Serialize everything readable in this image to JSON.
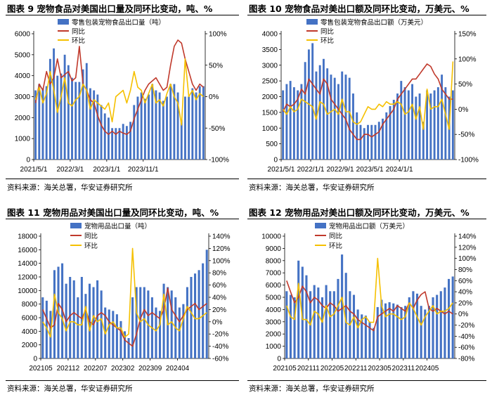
{
  "source_label": "资料来源：海关总署，华安证券研究所",
  "colors": {
    "bar": "#4472C4",
    "yoy": "#C0392B",
    "mom": "#F5C000"
  },
  "chart_data": [
    {
      "type": "bar",
      "title": "图表 9 宠物食品对美国出口量及同环比变动，吨、%",
      "series": [
        {
          "name": "零售包装宠物食品出口量（吨）",
          "kind": "bar",
          "axis": "left",
          "values": [
            3300,
            3600,
            3400,
            3500,
            4800,
            5300,
            4000,
            4100,
            5000,
            4500,
            3900,
            3700,
            3700,
            4300,
            4600,
            3400,
            3300,
            3100,
            2600,
            2200,
            2000,
            1500,
            1500,
            1500,
            1700,
            1600,
            1800,
            2600,
            3000,
            3200,
            2900,
            3100,
            3600,
            3300,
            3200,
            2800,
            3000,
            3600,
            3600,
            3200,
            1900,
            3000,
            3000,
            3400,
            3200,
            3500,
            3500
          ]
        },
        {
          "name": "同比",
          "kind": "line",
          "axis": "right",
          "values": [
            -10,
            20,
            10,
            40,
            20,
            30,
            60,
            30,
            35,
            40,
            25,
            30,
            80,
            20,
            10,
            -5,
            -10,
            -30,
            -45,
            -55,
            -60,
            -55,
            -60,
            -55,
            -58,
            -60,
            -55,
            -35,
            -20,
            -5,
            10,
            20,
            25,
            30,
            20,
            10,
            15,
            50,
            80,
            90,
            85,
            60,
            40,
            20,
            10,
            20,
            15
          ]
        },
        {
          "name": "环比",
          "kind": "line",
          "axis": "right",
          "values": [
            -5,
            15,
            -10,
            5,
            40,
            10,
            -25,
            0,
            30,
            -10,
            -15,
            -5,
            0,
            20,
            10,
            -20,
            -5,
            -10,
            -15,
            -20,
            -10,
            -40,
            0,
            5,
            10,
            -10,
            10,
            40,
            15,
            10,
            -10,
            5,
            20,
            -10,
            -5,
            -15,
            5,
            20,
            0,
            -10,
            -45,
            60,
            0,
            10,
            -5,
            5,
            0
          ]
        }
      ],
      "x_tick_labels": [
        "2021/5/1",
        "2022/3/1",
        "2023/1/1",
        "2023/11/1"
      ],
      "x_tick_index": [
        0,
        10,
        20,
        30
      ],
      "ylim_left": [
        0,
        6000
      ],
      "yticks_left": [
        0,
        1000,
        2000,
        3000,
        4000,
        5000,
        6000
      ],
      "ylim_right": [
        -100,
        100
      ],
      "yticks_right": [
        -100,
        -50,
        0,
        50,
        100
      ],
      "right_suffix": "%",
      "legend": [
        "零售包装宠物食品出口量（吨）",
        "同比",
        "环比"
      ]
    },
    {
      "type": "bar",
      "title": "图表 10 宠物食品对美出口额及同环比变动，万美元、%",
      "series": [
        {
          "name": "零售包装宠物食品出口额（万美元）",
          "kind": "bar",
          "axis": "left",
          "values": [
            2200,
            2400,
            2500,
            2300,
            2200,
            2400,
            3100,
            3500,
            3700,
            2800,
            3000,
            3200,
            2900,
            2700,
            2600,
            2400,
            2800,
            2700,
            2600,
            2100,
            1500,
            1100,
            1000,
            1100,
            1100,
            1100,
            1200,
            1300,
            1500,
            1700,
            1900,
            2100,
            2500,
            2300,
            2200,
            2400,
            2000,
            2100,
            1200,
            2200,
            2100,
            2200,
            2300,
            2700,
            2300,
            2000,
            2200
          ]
        },
        {
          "name": "同比",
          "kind": "line",
          "axis": "right",
          "values": [
            -5,
            10,
            5,
            10,
            20,
            40,
            30,
            60,
            50,
            40,
            30,
            60,
            50,
            20,
            10,
            0,
            -10,
            -20,
            -40,
            -50,
            -60,
            -60,
            -50,
            -50,
            -55,
            -50,
            -45,
            -30,
            -20,
            -10,
            0,
            20,
            30,
            40,
            50,
            60,
            60,
            70,
            80,
            90,
            85,
            70,
            60,
            40,
            30,
            20,
            20
          ]
        },
        {
          "name": "环比",
          "kind": "line",
          "axis": "right",
          "values": [
            0,
            -10,
            5,
            -5,
            0,
            20,
            15,
            10,
            5,
            -20,
            15,
            10,
            -10,
            -5,
            0,
            -10,
            20,
            -5,
            -5,
            -25,
            -30,
            -25,
            -10,
            5,
            0,
            0,
            10,
            5,
            15,
            10,
            10,
            15,
            10,
            -10,
            -5,
            10,
            -20,
            5,
            -40,
            40,
            0,
            5,
            5,
            20,
            -10,
            -40,
            95
          ]
        }
      ],
      "x_tick_labels": [
        "2021/5/1",
        "2022/1/1",
        "2022/9/1",
        "2023/5/1",
        "2024/1/1"
      ],
      "x_tick_index": [
        0,
        8,
        16,
        24,
        32
      ],
      "ylim_left": [
        0,
        4000
      ],
      "yticks_left": [
        0,
        500,
        1000,
        1500,
        2000,
        2500,
        3000,
        3500,
        4000
      ],
      "ylim_right": [
        -100,
        150
      ],
      "yticks_right": [
        -100,
        -50,
        0,
        50,
        100,
        150
      ],
      "right_suffix": "%",
      "legend": [
        "零售包装宠物食品出口额（万美元）",
        "同比",
        "环比"
      ]
    },
    {
      "type": "bar",
      "title": "图表 11 宠物用品对美国出口量及同环比变动，吨、%",
      "series": [
        {
          "name": "宠物用品出口量（吨）",
          "kind": "bar",
          "axis": "left",
          "values": [
            9000,
            8500,
            7000,
            13000,
            13500,
            14000,
            11000,
            12000,
            11500,
            9000,
            12000,
            9500,
            11000,
            10500,
            11500,
            10000,
            7500,
            7200,
            7000,
            6500,
            5500,
            4000,
            3000,
            9000,
            10500,
            10500,
            10500,
            10000,
            9000,
            7500,
            7000,
            11000,
            10500,
            10000,
            9000,
            7500,
            8000,
            10500,
            12000,
            12500,
            13000,
            14000,
            16000
          ]
        },
        {
          "name": "同比",
          "kind": "line",
          "axis": "right",
          "values": [
            20,
            5,
            -10,
            -5,
            30,
            20,
            0,
            10,
            15,
            10,
            5,
            20,
            0,
            -5,
            10,
            15,
            10,
            0,
            -5,
            -10,
            -15,
            -30,
            -35,
            -40,
            -20,
            5,
            20,
            10,
            15,
            10,
            5,
            20,
            55,
            20,
            10,
            0,
            10,
            20,
            25,
            30,
            20,
            25,
            30
          ]
        },
        {
          "name": "环比",
          "kind": "line",
          "axis": "right",
          "values": [
            0,
            -10,
            -25,
            45,
            15,
            5,
            -15,
            0,
            0,
            -5,
            -5,
            25,
            -15,
            10,
            0,
            5,
            -20,
            -5,
            0,
            -10,
            -10,
            -25,
            -20,
            120,
            15,
            0,
            5,
            -5,
            -10,
            -15,
            -5,
            45,
            -5,
            0,
            -10,
            -15,
            5,
            25,
            15,
            5,
            5,
            10,
            15
          ]
        }
      ],
      "x_tick_labels": [
        "202105",
        "202112",
        "202207",
        "202302",
        "202309",
        "202404"
      ],
      "x_tick_index": [
        0,
        7,
        14,
        21,
        28,
        35
      ],
      "ylim_left": [
        0,
        18000
      ],
      "yticks_left": [
        0,
        2000,
        4000,
        6000,
        8000,
        10000,
        12000,
        14000,
        16000,
        18000
      ],
      "ylim_right": [
        -60,
        140
      ],
      "yticks_right": [
        -60,
        -40,
        -20,
        0,
        20,
        40,
        60,
        80,
        100,
        120,
        140
      ],
      "right_suffix": "%",
      "legend": [
        "宠物用品出口量（吨）",
        "同比",
        "环比"
      ]
    },
    {
      "type": "bar",
      "title": "图表 12 宠物用品对美出口额及同环比变动，万美元、%",
      "series": [
        {
          "name": "宠物用品出口额（万美元）",
          "kind": "bar",
          "axis": "left",
          "values": [
            5500,
            5200,
            5000,
            8000,
            7500,
            6800,
            5500,
            6000,
            5800,
            5000,
            6000,
            5500,
            5500,
            6500,
            8500,
            7000,
            5500,
            5200,
            4000,
            3600,
            3500,
            3000,
            2500,
            4200,
            4800,
            4500,
            4600,
            4500,
            4400,
            4200,
            4300,
            5000,
            5500,
            5300,
            4300,
            4000,
            4300,
            5000,
            5200,
            5500,
            5800,
            6500,
            6700
          ]
        },
        {
          "name": "同比",
          "kind": "line",
          "axis": "right",
          "values": [
            60,
            40,
            20,
            30,
            50,
            40,
            20,
            30,
            25,
            15,
            10,
            20,
            15,
            5,
            10,
            15,
            5,
            0,
            -10,
            -15,
            -20,
            -25,
            -30,
            -5,
            0,
            5,
            10,
            5,
            15,
            10,
            5,
            20,
            10,
            25,
            35,
            40,
            10,
            5,
            10,
            5,
            0,
            5,
            0
          ]
        },
        {
          "name": "环比",
          "kind": "line",
          "axis": "right",
          "values": [
            15,
            -5,
            -10,
            55,
            -10,
            -10,
            -20,
            5,
            0,
            -15,
            15,
            -5,
            0,
            15,
            30,
            -15,
            -20,
            -5,
            -25,
            -10,
            -5,
            -15,
            -15,
            100,
            15,
            -5,
            0,
            0,
            -5,
            -10,
            -5,
            20,
            10,
            -5,
            -20,
            -5,
            5,
            15,
            0,
            5,
            5,
            10,
            20
          ]
        }
      ],
      "x_tick_labels": [
        "202105",
        "202111",
        "202205",
        "202211",
        "202305",
        "202311",
        "202405"
      ],
      "x_tick_index": [
        0,
        6,
        12,
        18,
        24,
        30,
        36
      ],
      "ylim_left": [
        0,
        10000
      ],
      "yticks_left": [
        0,
        1000,
        2000,
        3000,
        4000,
        5000,
        6000,
        7000,
        8000,
        9000,
        10000
      ],
      "ylim_right": [
        -80,
        140
      ],
      "yticks_right": [
        -80,
        -60,
        -40,
        -20,
        0,
        20,
        40,
        60,
        80,
        100,
        120,
        140
      ],
      "right_suffix": "%",
      "legend": [
        "宠物用品出口额（万美元）",
        "同比",
        "环比"
      ]
    }
  ]
}
